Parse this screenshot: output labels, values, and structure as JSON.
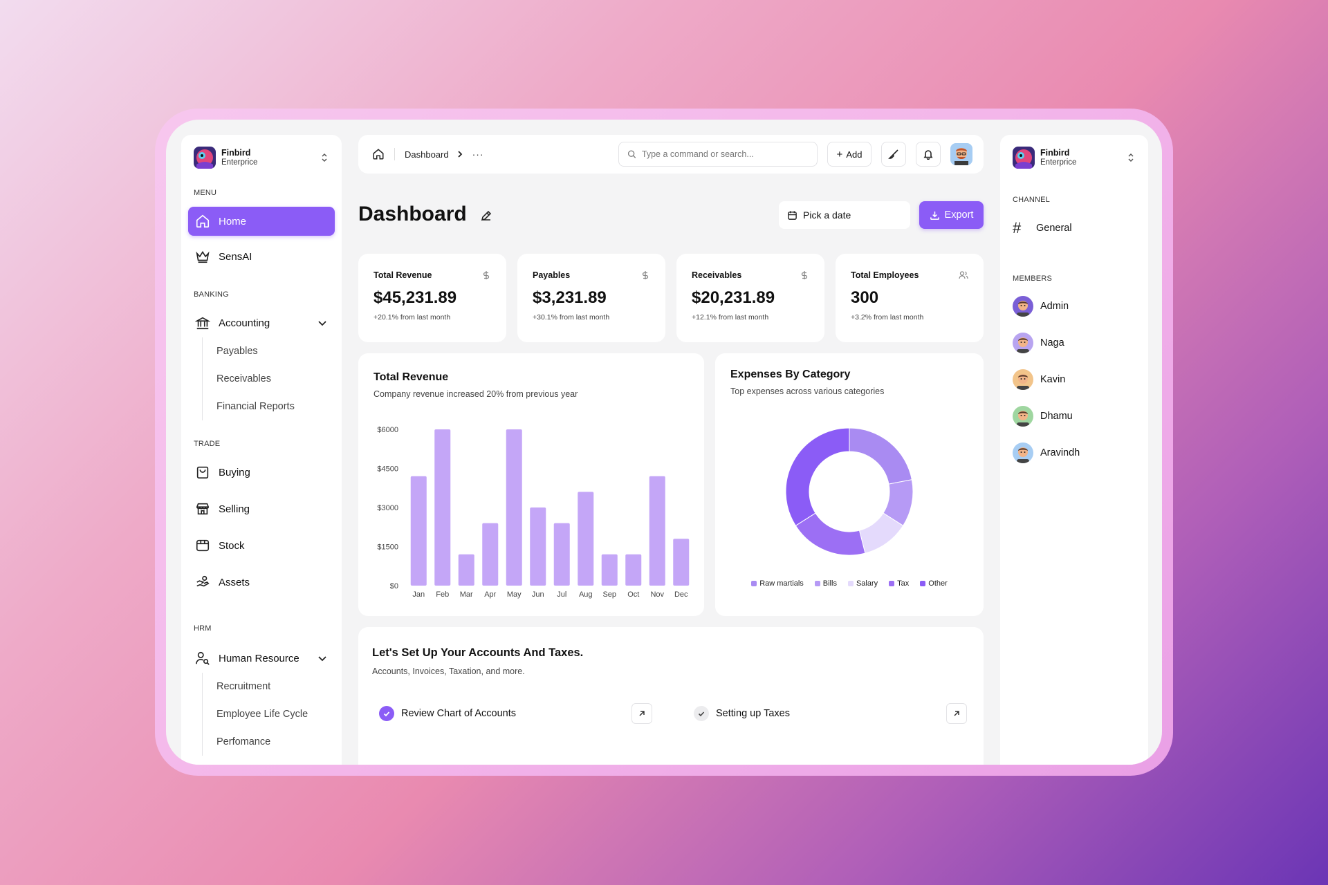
{
  "org": {
    "name": "Finbird",
    "plan": "Enterprice"
  },
  "sidebar": {
    "menu_label": "MENU",
    "menu": [
      {
        "label": "Home",
        "icon": "home-icon",
        "active": true
      },
      {
        "label": "SensAI",
        "icon": "crown-icon"
      }
    ],
    "banking_label": "BANKING",
    "accounting": {
      "label": "Accounting",
      "icon": "bank-icon",
      "subs": [
        "Payables",
        "Receivables",
        "Financial Reports"
      ]
    },
    "trade_label": "TRADE",
    "trade": [
      {
        "label": "Buying",
        "icon": "shopping-bag-icon"
      },
      {
        "label": "Selling",
        "icon": "store-icon"
      },
      {
        "label": "Stock",
        "icon": "box-icon"
      },
      {
        "label": "Assets",
        "icon": "hand-coins-icon"
      }
    ],
    "hrm_label": "HRM",
    "hr": {
      "label": "Human Resource",
      "icon": "user-search-icon",
      "subs": [
        "Recruitment",
        "Employee Life Cycle",
        "Perfomance"
      ]
    }
  },
  "topbar": {
    "breadcrumb": "Dashboard",
    "more": "···",
    "search_placeholder": "Type a command or search...",
    "add_label": "Add"
  },
  "page": {
    "title": "Dashboard",
    "date_placeholder": "Pick a date",
    "export_label": "Export"
  },
  "stats": [
    {
      "label": "Total Revenue",
      "value": "$45,231.89",
      "change": "+20.1% from last month",
      "icon": "dollar-icon"
    },
    {
      "label": "Payables",
      "value": "$3,231.89",
      "change": "+30.1% from last month",
      "icon": "dollar-icon"
    },
    {
      "label": "Receivables",
      "value": "$20,231.89",
      "change": "+12.1% from last month",
      "icon": "dollar-icon"
    },
    {
      "label": "Total Employees",
      "value": "300",
      "change": "+3.2% from last month",
      "icon": "users-icon"
    }
  ],
  "chart_data": [
    {
      "type": "bar",
      "title": "Total Revenue",
      "subtitle": "Company revenue increased 20% from previous year",
      "categories": [
        "Jan",
        "Feb",
        "Mar",
        "Apr",
        "May",
        "Jun",
        "Jul",
        "Aug",
        "Sep",
        "Oct",
        "Nov",
        "Dec"
      ],
      "values": [
        4200,
        6000,
        1200,
        2400,
        6000,
        3000,
        2400,
        3600,
        1200,
        1200,
        4200,
        1800
      ],
      "yticks": [
        0,
        1500,
        3000,
        4500,
        6000
      ],
      "ytick_labels": [
        "$0",
        "$1500",
        "$3000",
        "$4500",
        "$6000"
      ],
      "ylim": [
        0,
        6000
      ],
      "color": "#c4a6f7",
      "grid": false
    },
    {
      "type": "pie",
      "title": "Expenses By Category",
      "subtitle": "Top expenses across various categories",
      "donut": true,
      "labels": [
        "Raw martials",
        "Bills",
        "Salary",
        "Tax",
        "Other"
      ],
      "values": [
        22,
        12,
        12,
        20,
        34
      ],
      "colors": [
        "#a98bf2",
        "#b69af5",
        "#e4dafc",
        "#9c6ff4",
        "#8b5cf6"
      ],
      "legend": "bottom"
    }
  ],
  "setup": {
    "title": "Let's Set Up Your Accounts And Taxes.",
    "subtitle": "Accounts, Invoices, Taxation, and more.",
    "tasks": [
      {
        "label": "Review Chart of Accounts",
        "done": true
      },
      {
        "label": "Setting up Taxes",
        "done": false
      }
    ]
  },
  "right": {
    "channel_label": "CHANNEL",
    "channel": "General",
    "members_label": "MEMBERS",
    "members": [
      {
        "name": "Admin",
        "color": "#7a5fd6"
      },
      {
        "name": "Naga",
        "color": "#b8a4f0"
      },
      {
        "name": "Kavin",
        "color": "#f2c48a"
      },
      {
        "name": "Dhamu",
        "color": "#9fd6a0"
      },
      {
        "name": "Aravindh",
        "color": "#a7cdf3"
      }
    ]
  }
}
